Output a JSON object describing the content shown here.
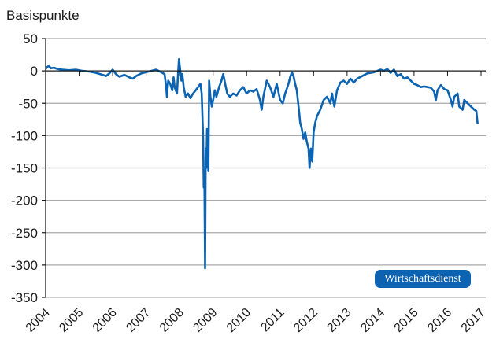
{
  "chart_data": {
    "type": "line",
    "title": "",
    "ylabel": "Basispunkte",
    "xlabel": "",
    "ylim": [
      -350,
      50
    ],
    "xlim": [
      2004,
      2017
    ],
    "yticks": [
      50,
      0,
      -50,
      -100,
      -150,
      -200,
      -250,
      -300,
      -350
    ],
    "xticks": [
      "2004",
      "2005",
      "2006",
      "2007",
      "2008",
      "2009",
      "2010",
      "2011",
      "2012",
      "2013",
      "2014",
      "2015",
      "2016",
      "2017"
    ],
    "grid": true,
    "legend": null,
    "line_color": "#0b63b1",
    "series": [
      {
        "name": "Basispunkte",
        "points": [
          [
            2004.0,
            3
          ],
          [
            2004.05,
            6
          ],
          [
            2004.1,
            8
          ],
          [
            2004.15,
            4
          ],
          [
            2004.25,
            5
          ],
          [
            2004.35,
            3
          ],
          [
            2004.5,
            2
          ],
          [
            2004.7,
            1
          ],
          [
            2004.9,
            2
          ],
          [
            2005.1,
            0
          ],
          [
            2005.3,
            -1
          ],
          [
            2005.5,
            -3
          ],
          [
            2005.7,
            -6
          ],
          [
            2005.8,
            -8
          ],
          [
            2005.9,
            -4
          ],
          [
            2006.0,
            2
          ],
          [
            2006.1,
            -5
          ],
          [
            2006.2,
            -9
          ],
          [
            2006.35,
            -6
          ],
          [
            2006.5,
            -10
          ],
          [
            2006.6,
            -12
          ],
          [
            2006.7,
            -8
          ],
          [
            2006.85,
            -4
          ],
          [
            2007.0,
            -2
          ],
          [
            2007.15,
            0
          ],
          [
            2007.3,
            2
          ],
          [
            2007.45,
            -2
          ],
          [
            2007.55,
            -5
          ],
          [
            2007.6,
            -25
          ],
          [
            2007.62,
            -40
          ],
          [
            2007.66,
            -15
          ],
          [
            2007.72,
            -20
          ],
          [
            2007.78,
            -30
          ],
          [
            2007.82,
            -10
          ],
          [
            2007.85,
            -25
          ],
          [
            2007.92,
            -35
          ],
          [
            2007.95,
            -8
          ],
          [
            2007.98,
            18
          ],
          [
            2008.02,
            0
          ],
          [
            2008.05,
            -15
          ],
          [
            2008.08,
            -5
          ],
          [
            2008.12,
            -25
          ],
          [
            2008.18,
            -40
          ],
          [
            2008.25,
            -35
          ],
          [
            2008.32,
            -42
          ],
          [
            2008.4,
            -35
          ],
          [
            2008.48,
            -30
          ],
          [
            2008.55,
            -25
          ],
          [
            2008.62,
            -20
          ],
          [
            2008.66,
            -35
          ],
          [
            2008.7,
            -100
          ],
          [
            2008.72,
            -180
          ],
          [
            2008.74,
            -160
          ],
          [
            2008.76,
            -305
          ],
          [
            2008.78,
            -120
          ],
          [
            2008.8,
            -150
          ],
          [
            2008.82,
            -90
          ],
          [
            2008.86,
            -155
          ],
          [
            2008.88,
            -15
          ],
          [
            2008.92,
            -40
          ],
          [
            2008.96,
            -55
          ],
          [
            2009.0,
            -45
          ],
          [
            2009.05,
            -30
          ],
          [
            2009.1,
            -40
          ],
          [
            2009.18,
            -25
          ],
          [
            2009.25,
            -15
          ],
          [
            2009.3,
            -5
          ],
          [
            2009.36,
            -20
          ],
          [
            2009.42,
            -35
          ],
          [
            2009.5,
            -40
          ],
          [
            2009.6,
            -35
          ],
          [
            2009.7,
            -38
          ],
          [
            2009.8,
            -30
          ],
          [
            2009.9,
            -25
          ],
          [
            2010.0,
            -35
          ],
          [
            2010.1,
            -30
          ],
          [
            2010.2,
            -32
          ],
          [
            2010.3,
            -28
          ],
          [
            2010.4,
            -45
          ],
          [
            2010.45,
            -60
          ],
          [
            2010.5,
            -40
          ],
          [
            2010.6,
            -15
          ],
          [
            2010.7,
            -25
          ],
          [
            2010.8,
            -40
          ],
          [
            2010.9,
            -20
          ],
          [
            2011.0,
            -45
          ],
          [
            2011.08,
            -50
          ],
          [
            2011.15,
            -35
          ],
          [
            2011.25,
            -20
          ],
          [
            2011.3,
            -10
          ],
          [
            2011.35,
            -2
          ],
          [
            2011.4,
            -8
          ],
          [
            2011.45,
            -20
          ],
          [
            2011.5,
            -30
          ],
          [
            2011.55,
            -55
          ],
          [
            2011.6,
            -80
          ],
          [
            2011.65,
            -90
          ],
          [
            2011.7,
            -105
          ],
          [
            2011.75,
            -95
          ],
          [
            2011.8,
            -110
          ],
          [
            2011.85,
            -120
          ],
          [
            2011.88,
            -150
          ],
          [
            2011.92,
            -120
          ],
          [
            2011.96,
            -140
          ],
          [
            2012.0,
            -95
          ],
          [
            2012.05,
            -80
          ],
          [
            2012.1,
            -70
          ],
          [
            2012.2,
            -60
          ],
          [
            2012.3,
            -45
          ],
          [
            2012.4,
            -40
          ],
          [
            2012.5,
            -50
          ],
          [
            2012.55,
            -35
          ],
          [
            2012.62,
            -55
          ],
          [
            2012.7,
            -30
          ],
          [
            2012.8,
            -18
          ],
          [
            2012.9,
            -15
          ],
          [
            2013.0,
            -20
          ],
          [
            2013.1,
            -12
          ],
          [
            2013.2,
            -18
          ],
          [
            2013.3,
            -12
          ],
          [
            2013.45,
            -8
          ],
          [
            2013.6,
            -4
          ],
          [
            2013.8,
            -2
          ],
          [
            2014.0,
            2
          ],
          [
            2014.1,
            0
          ],
          [
            2014.2,
            3
          ],
          [
            2014.3,
            -3
          ],
          [
            2014.4,
            2
          ],
          [
            2014.5,
            -8
          ],
          [
            2014.6,
            -5
          ],
          [
            2014.7,
            -12
          ],
          [
            2014.8,
            -10
          ],
          [
            2014.9,
            -15
          ],
          [
            2015.0,
            -20
          ],
          [
            2015.1,
            -22
          ],
          [
            2015.2,
            -25
          ],
          [
            2015.3,
            -24
          ],
          [
            2015.4,
            -25
          ],
          [
            2015.5,
            -26
          ],
          [
            2015.6,
            -32
          ],
          [
            2015.65,
            -45
          ],
          [
            2015.7,
            -30
          ],
          [
            2015.8,
            -22
          ],
          [
            2015.9,
            -28
          ],
          [
            2016.0,
            -30
          ],
          [
            2016.1,
            -45
          ],
          [
            2016.15,
            -55
          ],
          [
            2016.2,
            -40
          ],
          [
            2016.3,
            -35
          ],
          [
            2016.35,
            -55
          ],
          [
            2016.45,
            -60
          ],
          [
            2016.5,
            -45
          ],
          [
            2016.6,
            -50
          ],
          [
            2016.7,
            -55
          ],
          [
            2016.8,
            -60
          ],
          [
            2016.86,
            -62
          ],
          [
            2016.9,
            -82
          ]
        ]
      }
    ]
  },
  "badge": {
    "label": "Wirtschaftsdienst",
    "color": "#0b63b1"
  }
}
